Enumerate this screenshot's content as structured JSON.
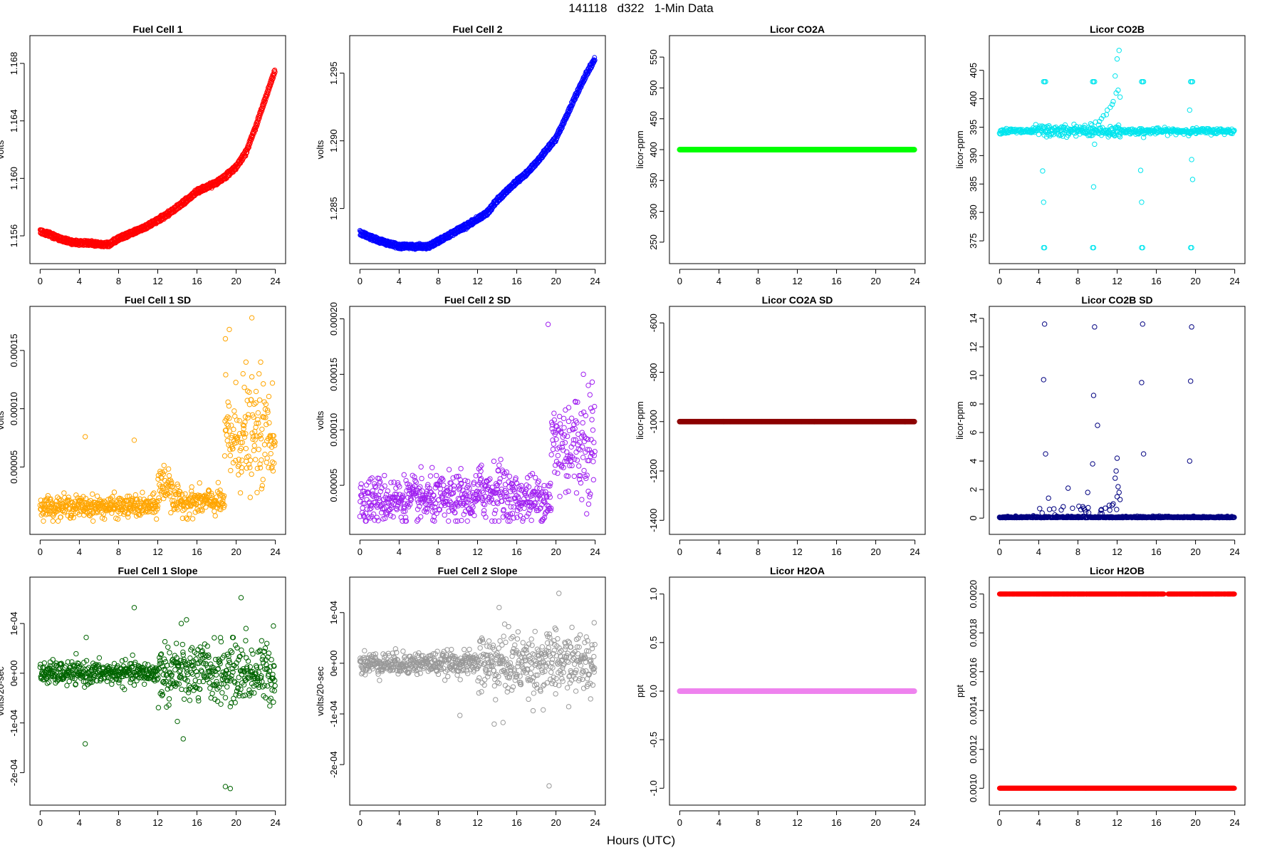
{
  "title": "141118   d322   1-Min Data",
  "xlabel": "Hours (UTC)",
  "chart_data": [
    {
      "id": "fc1",
      "type": "line",
      "title": "Fuel Cell 1",
      "ylabel": "volts",
      "color": "#ff0000",
      "x_ticks": [
        "0",
        "4",
        "8",
        "12",
        "16",
        "20",
        "24"
      ],
      "xlim": [
        0,
        24
      ],
      "y_ticks": [
        "1.156",
        "1.160",
        "1.164",
        "1.168"
      ],
      "ylim": [
        1.1547,
        1.1693
      ],
      "series": [
        {
          "x": [
            0,
            1,
            2,
            3,
            4,
            5,
            6,
            7,
            8,
            9,
            10,
            11,
            12,
            13,
            14,
            15,
            16,
            17,
            18,
            19,
            20,
            21,
            22,
            23,
            24
          ],
          "values": [
            1.1563,
            1.1561,
            1.1558,
            1.1556,
            1.1555,
            1.1555,
            1.1554,
            1.1554,
            1.1558,
            1.1561,
            1.1564,
            1.1567,
            1.1571,
            1.1575,
            1.158,
            1.1585,
            1.1591,
            1.1594,
            1.1597,
            1.1602,
            1.1608,
            1.1618,
            1.1636,
            1.1656,
            1.1676
          ]
        }
      ]
    },
    {
      "id": "fc2",
      "type": "line",
      "title": "Fuel Cell 2",
      "ylabel": "volts",
      "color": "#0000ff",
      "x_ticks": [
        "0",
        "4",
        "8",
        "12",
        "16",
        "20",
        "24"
      ],
      "xlim": [
        0,
        24
      ],
      "y_ticks": [
        "1.285",
        "1.290",
        "1.295"
      ],
      "ylim": [
        1.2816,
        1.2971
      ],
      "series": [
        {
          "x": [
            0,
            1,
            2,
            3,
            4,
            5,
            6,
            7,
            8,
            9,
            10,
            11,
            12,
            13,
            14,
            15,
            16,
            17,
            18,
            19,
            20,
            21,
            22,
            23,
            24
          ],
          "values": [
            1.2832,
            1.2829,
            1.2826,
            1.2824,
            1.2822,
            1.2822,
            1.2822,
            1.2822,
            1.2826,
            1.283,
            1.2834,
            1.2838,
            1.2842,
            1.2847,
            1.2856,
            1.2863,
            1.287,
            1.2876,
            1.2884,
            1.2893,
            1.2902,
            1.2917,
            1.2933,
            1.2948,
            1.2961
          ]
        }
      ]
    },
    {
      "id": "co2a",
      "type": "line",
      "title": "Licor CO2A",
      "ylabel": "licor-ppm",
      "color": "#00ff00",
      "x_ticks": [
        "0",
        "4",
        "8",
        "12",
        "16",
        "20",
        "24"
      ],
      "xlim": [
        0,
        24
      ],
      "y_ticks": [
        "250",
        "300",
        "350",
        "400",
        "450",
        "500",
        "550"
      ],
      "ylim": [
        230,
        570
      ],
      "series": [
        {
          "x": [
            0,
            24
          ],
          "values": [
            400,
            400
          ]
        }
      ]
    },
    {
      "id": "co2b",
      "type": "scatter",
      "title": "Licor CO2B",
      "ylabel": "licor-ppm",
      "color": "#00e5ee",
      "x_ticks": [
        "0",
        "4",
        "8",
        "12",
        "16",
        "20",
        "24"
      ],
      "xlim": [
        0,
        24
      ],
      "y_ticks": [
        "375",
        "380",
        "385",
        "390",
        "395",
        "400",
        "405"
      ],
      "ylim": [
        372.6,
        409.5
      ],
      "baseline": 394.3,
      "series": [
        {
          "x": [
            4.5,
            4.6,
            4.7,
            4.5,
            4.6,
            9.5,
            9.6,
            9.7,
            9.5,
            9.6,
            14.5,
            14.6,
            14.7,
            14.5,
            14.6,
            19.5,
            19.6,
            19.7,
            19.5,
            19.6,
            4.4,
            4.5,
            9.6,
            9.7,
            14.4,
            14.5,
            19.6,
            19.7,
            10.2,
            10.6,
            11.0,
            11.3,
            11.6,
            11.9,
            12.1,
            12.3,
            12.0,
            11.8,
            12.2,
            11.5,
            10.9,
            10.4,
            9.8,
            9.3,
            8.7,
            8.2,
            7.6,
            11.1,
            11.7,
            12.2,
            9.5,
            14.7,
            19.4,
            4.8
          ],
          "values": [
            403,
            403,
            403,
            373.8,
            373.8,
            403,
            403,
            403,
            373.8,
            373.8,
            403,
            403,
            403,
            373.8,
            373.8,
            403,
            403,
            403,
            373.8,
            373.8,
            387.3,
            381.8,
            384.5,
            392,
            387.4,
            381.8,
            389.3,
            385.8,
            396,
            397,
            398,
            398.5,
            399.5,
            401,
            401.5,
            400.3,
            407,
            404,
            408.5,
            399,
            397.2,
            396.5,
            395.9,
            395.6,
            395.3,
            395,
            395.5,
            393.3,
            393.8,
            393.5,
            393.6,
            393.2,
            398,
            393.3
          ]
        }
      ]
    },
    {
      "id": "fc1sd",
      "type": "scatter",
      "title": "Fuel Cell 1 SD",
      "ylabel": "volts",
      "color": "#ffa500",
      "x_ticks": [
        "0",
        "4",
        "8",
        "12",
        "16",
        "20",
        "24"
      ],
      "xlim": [
        0,
        24
      ],
      "y_ticks": [
        "0.00005",
        "0.00010",
        "0.00015"
      ],
      "ylim": [
        0,
        0.00018
      ],
      "regimes": [
        {
          "from": 0,
          "to": 12,
          "mean": 1.6e-05
        },
        {
          "from": 12,
          "to": 13.5,
          "mean": 3.5e-05
        },
        {
          "from": 13.5,
          "to": 18.8,
          "mean": 2e-05
        },
        {
          "from": 18.8,
          "to": 24,
          "mean": 7.5e-05
        }
      ],
      "series": [
        {
          "x": [
            4.6,
            9.6,
            18.9,
            19.3,
            21.6,
            21.0,
            22.5,
            23.7,
            20.7,
            22.0
          ],
          "values": [
            7.6e-05,
            7.3e-05,
            0.00016,
            0.000168,
            0.000178,
            0.00014,
            0.00014,
            0.000122,
            0.00013,
            0.000105
          ]
        }
      ]
    },
    {
      "id": "fc2sd",
      "type": "scatter",
      "title": "Fuel Cell 2 SD",
      "ylabel": "volts",
      "color": "#a020f0",
      "x_ticks": [
        "0",
        "4",
        "8",
        "12",
        "16",
        "20",
        "24"
      ],
      "xlim": [
        0,
        24
      ],
      "y_ticks": [
        "0.00005",
        "0.00010",
        "0.00015",
        "0.00020"
      ],
      "ylim": [
        1.4e-05,
        0.000203
      ],
      "regimes": [
        {
          "from": 0,
          "to": 12,
          "mean": 3.7e-05
        },
        {
          "from": 12,
          "to": 15,
          "mean": 4.5e-05
        },
        {
          "from": 15,
          "to": 19.5,
          "mean": 3.8e-05
        },
        {
          "from": 19.5,
          "to": 24,
          "mean": 8.5e-05
        }
      ],
      "series": [
        {
          "x": [
            19.2,
            22.8,
            23.3,
            23.7,
            22.0,
            21.3,
            12.4,
            14.1,
            10.3
          ],
          "values": [
            0.000195,
            0.00015,
            0.00014,
            0.000143,
            0.000125,
            0.00012,
            6.8e-05,
            6.3e-05,
            6.5e-05
          ]
        }
      ]
    },
    {
      "id": "co2asd",
      "type": "line",
      "title": "Licor CO2A SD",
      "ylabel": "licor-ppm",
      "color": "#8b0000",
      "x_ticks": [
        "0",
        "4",
        "8",
        "12",
        "16",
        "20",
        "24"
      ],
      "xlim": [
        0,
        24
      ],
      "y_ticks": [
        "-1400",
        "-1200",
        "-1000",
        "-800",
        "-600"
      ],
      "ylim": [
        -1420,
        -570
      ],
      "series": [
        {
          "x": [
            0,
            24
          ],
          "values": [
            -1000,
            -1000
          ]
        }
      ]
    },
    {
      "id": "co2bsd",
      "type": "scatter",
      "title": "Licor CO2B SD",
      "ylabel": "licor-ppm",
      "color": "#000080",
      "x_ticks": [
        "0",
        "4",
        "8",
        "12",
        "16",
        "20",
        "24"
      ],
      "xlim": [
        0,
        24
      ],
      "y_ticks": [
        "0",
        "2",
        "4",
        "6",
        "8",
        "10",
        "12",
        "14"
      ],
      "ylim": [
        -0.5,
        14.2
      ],
      "baseline": 0.03,
      "series": [
        {
          "x": [
            4.6,
            4.5,
            4.7,
            9.7,
            9.6,
            9.5,
            10.0,
            14.6,
            14.5,
            14.7,
            19.6,
            19.5,
            19.4,
            12.0,
            11.9,
            12.2,
            11.8,
            12.1,
            12.3,
            11.6,
            11.2,
            10.8,
            10.4,
            7.0,
            6.5,
            8.5,
            9.0,
            5.0,
            12.0,
            11.5
          ],
          "values": [
            13.6,
            9.7,
            4.5,
            13.4,
            8.6,
            3.8,
            6.5,
            13.6,
            9.5,
            4.5,
            13.4,
            9.6,
            4.0,
            4.2,
            3.3,
            1.8,
            2.8,
            2.2,
            1.3,
            1.0,
            0.9,
            0.7,
            0.6,
            2.1,
            0.8,
            0.8,
            1.8,
            1.4,
            1.5,
            0.9
          ]
        }
      ]
    },
    {
      "id": "fc1slope",
      "type": "scatter",
      "title": "Fuel Cell 1 Slope",
      "ylabel": "volts/20-sec",
      "color": "#006400",
      "x_ticks": [
        "0",
        "4",
        "8",
        "12",
        "16",
        "20",
        "24"
      ],
      "xlim": [
        0,
        24
      ],
      "y_ticks": [
        "-2e-04",
        "-1e-04",
        "0e+00",
        "1e-04"
      ],
      "ylim": [
        -0.000247,
        0.000175
      ],
      "regimes": [
        {
          "from": 0,
          "to": 12,
          "sd": 1.1e-05
        },
        {
          "from": 12,
          "to": 24,
          "sd": 3e-05
        }
      ],
      "series": [
        {
          "x": [
            4.6,
            9.6,
            14.0,
            14.6,
            18.9,
            19.4,
            20.5,
            4.7,
            13.9,
            14.4,
            23.8,
            21.0
          ],
          "values": [
            -0.000142,
            0.000132,
            -9.7e-05,
            -0.000132,
            -0.000228,
            -0.000232,
            0.000152,
            7.2e-05,
            6e-05,
            0.0001,
            9.5e-05,
            9e-05
          ]
        }
      ]
    },
    {
      "id": "fc2slope",
      "type": "scatter",
      "title": "Fuel Cell 2 Slope",
      "ylabel": "volts/20-sec",
      "color": "#999999",
      "x_ticks": [
        "0",
        "4",
        "8",
        "12",
        "16",
        "20",
        "24"
      ],
      "xlim": [
        0,
        24
      ],
      "y_ticks": [
        "-2e-04",
        "-1e-04",
        "0e+00",
        "1e-04"
      ],
      "ylim": [
        -0.000262,
        0.000152
      ],
      "regimes": [
        {
          "from": 0,
          "to": 12,
          "sd": 1.1e-05
        },
        {
          "from": 12,
          "to": 24,
          "sd": 3e-05
        }
      ],
      "series": [
        {
          "x": [
            19.3,
            20.3,
            10.2,
            13.7,
            14.6,
            14.2,
            18.7,
            23.9
          ],
          "values": [
            -0.000242,
            0.000138,
            -0.000103,
            -0.00012,
            -0.000117,
            0.00011,
            -9.2e-05,
            8e-05
          ]
        }
      ]
    },
    {
      "id": "h2oa",
      "type": "line",
      "title": "Licor H2OA",
      "ylabel": "ppt",
      "color": "#ee82ee",
      "x_ticks": [
        "0",
        "4",
        "8",
        "12",
        "16",
        "20",
        "24"
      ],
      "xlim": [
        0,
        24
      ],
      "y_ticks": [
        "-1.0",
        "-0.5",
        "0.0",
        "0.5",
        "1.0"
      ],
      "ylim": [
        -1.08,
        1.08
      ],
      "series": [
        {
          "x": [
            0,
            24
          ],
          "values": [
            0,
            0
          ]
        }
      ]
    },
    {
      "id": "h2ob",
      "type": "scatter",
      "title": "Licor H2OB",
      "ylabel": "ppt",
      "color": "#ff0000",
      "x_ticks": [
        "0",
        "4",
        "8",
        "12",
        "16",
        "20",
        "24"
      ],
      "xlim": [
        0,
        24
      ],
      "y_ticks": [
        "0.0010",
        "0.0012",
        "0.0014",
        "0.0016",
        "0.0018",
        "0.0020"
      ],
      "ylim": [
        0.00096,
        0.00204
      ],
      "levels": [
        0.001,
        0.002
      ],
      "series": [
        {
          "x": [
            0,
            4,
            8,
            12,
            16,
            20,
            24
          ],
          "values": [
            0.001,
            0.001,
            0.001,
            0.001,
            0.001,
            0.001,
            0.001
          ]
        }
      ]
    }
  ]
}
